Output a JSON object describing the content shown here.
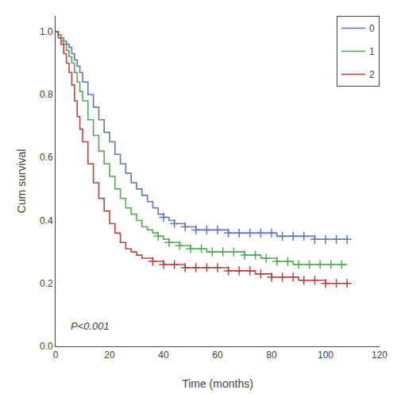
{
  "chart_data": {
    "type": "step",
    "title": "",
    "x_label": "Time (months)",
    "y_label": "Cum survival",
    "xlim": [
      0,
      120
    ],
    "ylim": [
      0.0,
      1.05
    ],
    "xticks": [
      0,
      20,
      40,
      60,
      80,
      100,
      120
    ],
    "yticks": [
      {
        "value": 0.0,
        "label": "0.0"
      },
      0.2,
      0.4,
      0.6,
      0.8,
      {
        "value": 1.0,
        "label": "1.0"
      }
    ],
    "grid": false,
    "legend": "upper right",
    "marker": "plus",
    "annotations": [
      {
        "text": "P<0.001",
        "x": 5,
        "y": 0.04
      }
    ],
    "series": [
      {
        "name": "0",
        "color": "#6677bb",
        "x": [
          0,
          1,
          2,
          3,
          4,
          5,
          6,
          7,
          8,
          9,
          10,
          12,
          14,
          16,
          18,
          20,
          22,
          24,
          26,
          28,
          30,
          32,
          34,
          36,
          38,
          40,
          42,
          44,
          46,
          48,
          50,
          52,
          54,
          56,
          58,
          60,
          62,
          64,
          66,
          68,
          70,
          72,
          74,
          76,
          78,
          80,
          82,
          84,
          86,
          88,
          90,
          92,
          94,
          96,
          98,
          100,
          102,
          104,
          106,
          108
        ],
        "values": [
          1.0,
          0.99,
          0.98,
          0.97,
          0.96,
          0.95,
          0.93,
          0.91,
          0.89,
          0.87,
          0.84,
          0.8,
          0.76,
          0.72,
          0.68,
          0.65,
          0.61,
          0.58,
          0.55,
          0.52,
          0.5,
          0.48,
          0.46,
          0.44,
          0.42,
          0.41,
          0.4,
          0.39,
          0.39,
          0.38,
          0.38,
          0.37,
          0.37,
          0.37,
          0.37,
          0.37,
          0.37,
          0.36,
          0.36,
          0.36,
          0.36,
          0.36,
          0.36,
          0.36,
          0.36,
          0.36,
          0.35,
          0.35,
          0.35,
          0.35,
          0.35,
          0.35,
          0.35,
          0.34,
          0.34,
          0.34,
          0.34,
          0.34,
          0.34,
          0.34
        ],
        "censor_x": [
          40,
          44,
          48,
          52,
          56,
          60,
          64,
          68,
          72,
          76,
          80,
          84,
          88,
          92,
          96,
          100,
          104,
          108
        ],
        "censor_values": [
          0.41,
          0.39,
          0.38,
          0.37,
          0.37,
          0.37,
          0.36,
          0.36,
          0.36,
          0.36,
          0.36,
          0.35,
          0.35,
          0.35,
          0.34,
          0.34,
          0.34,
          0.34
        ]
      },
      {
        "name": "1",
        "color": "#55aa55",
        "x": [
          0,
          1,
          2,
          3,
          4,
          5,
          6,
          7,
          8,
          9,
          10,
          12,
          14,
          16,
          18,
          20,
          22,
          24,
          26,
          28,
          30,
          32,
          34,
          36,
          38,
          40,
          42,
          44,
          46,
          48,
          50,
          52,
          54,
          56,
          58,
          60,
          62,
          64,
          66,
          68,
          70,
          72,
          74,
          76,
          78,
          80,
          82,
          84,
          86,
          88,
          90,
          92,
          94,
          96,
          98,
          100,
          102,
          104,
          106,
          108
        ],
        "values": [
          1.0,
          0.99,
          0.97,
          0.96,
          0.94,
          0.92,
          0.9,
          0.87,
          0.84,
          0.81,
          0.78,
          0.72,
          0.67,
          0.62,
          0.58,
          0.54,
          0.5,
          0.47,
          0.44,
          0.42,
          0.4,
          0.38,
          0.37,
          0.36,
          0.35,
          0.34,
          0.33,
          0.33,
          0.32,
          0.32,
          0.31,
          0.31,
          0.31,
          0.3,
          0.3,
          0.3,
          0.3,
          0.3,
          0.3,
          0.3,
          0.29,
          0.29,
          0.29,
          0.28,
          0.28,
          0.28,
          0.27,
          0.27,
          0.27,
          0.26,
          0.26,
          0.26,
          0.26,
          0.26,
          0.26,
          0.26,
          0.26,
          0.26,
          0.26,
          0.26
        ],
        "censor_x": [
          38,
          42,
          46,
          50,
          54,
          58,
          62,
          66,
          70,
          74,
          78,
          82,
          86,
          90,
          94,
          98,
          102,
          106
        ],
        "censor_values": [
          0.35,
          0.33,
          0.32,
          0.31,
          0.31,
          0.3,
          0.3,
          0.3,
          0.29,
          0.29,
          0.28,
          0.27,
          0.27,
          0.26,
          0.26,
          0.26,
          0.26,
          0.26
        ]
      },
      {
        "name": "2",
        "color": "#bb4444",
        "x": [
          0,
          1,
          2,
          3,
          4,
          5,
          6,
          7,
          8,
          9,
          10,
          12,
          14,
          16,
          18,
          20,
          22,
          24,
          26,
          28,
          30,
          32,
          34,
          36,
          38,
          40,
          42,
          44,
          46,
          48,
          50,
          52,
          54,
          56,
          58,
          60,
          62,
          64,
          66,
          68,
          70,
          72,
          74,
          76,
          78,
          80,
          82,
          84,
          86,
          88,
          90,
          92,
          94,
          96,
          98,
          100,
          102,
          104,
          106,
          108
        ],
        "values": [
          1.0,
          0.98,
          0.96,
          0.93,
          0.9,
          0.87,
          0.83,
          0.78,
          0.73,
          0.69,
          0.65,
          0.58,
          0.52,
          0.47,
          0.43,
          0.39,
          0.36,
          0.33,
          0.31,
          0.3,
          0.29,
          0.28,
          0.28,
          0.27,
          0.27,
          0.26,
          0.26,
          0.26,
          0.26,
          0.25,
          0.25,
          0.25,
          0.25,
          0.25,
          0.25,
          0.25,
          0.25,
          0.24,
          0.24,
          0.24,
          0.24,
          0.24,
          0.23,
          0.23,
          0.23,
          0.22,
          0.22,
          0.22,
          0.22,
          0.22,
          0.21,
          0.21,
          0.21,
          0.21,
          0.21,
          0.2,
          0.2,
          0.2,
          0.2,
          0.2
        ],
        "censor_x": [
          36,
          40,
          44,
          48,
          52,
          56,
          60,
          64,
          68,
          72,
          76,
          80,
          84,
          88,
          92,
          96,
          100,
          104,
          108
        ],
        "censor_values": [
          0.27,
          0.26,
          0.26,
          0.25,
          0.25,
          0.25,
          0.25,
          0.24,
          0.24,
          0.24,
          0.23,
          0.22,
          0.22,
          0.22,
          0.21,
          0.21,
          0.2,
          0.2,
          0.2
        ]
      }
    ]
  }
}
